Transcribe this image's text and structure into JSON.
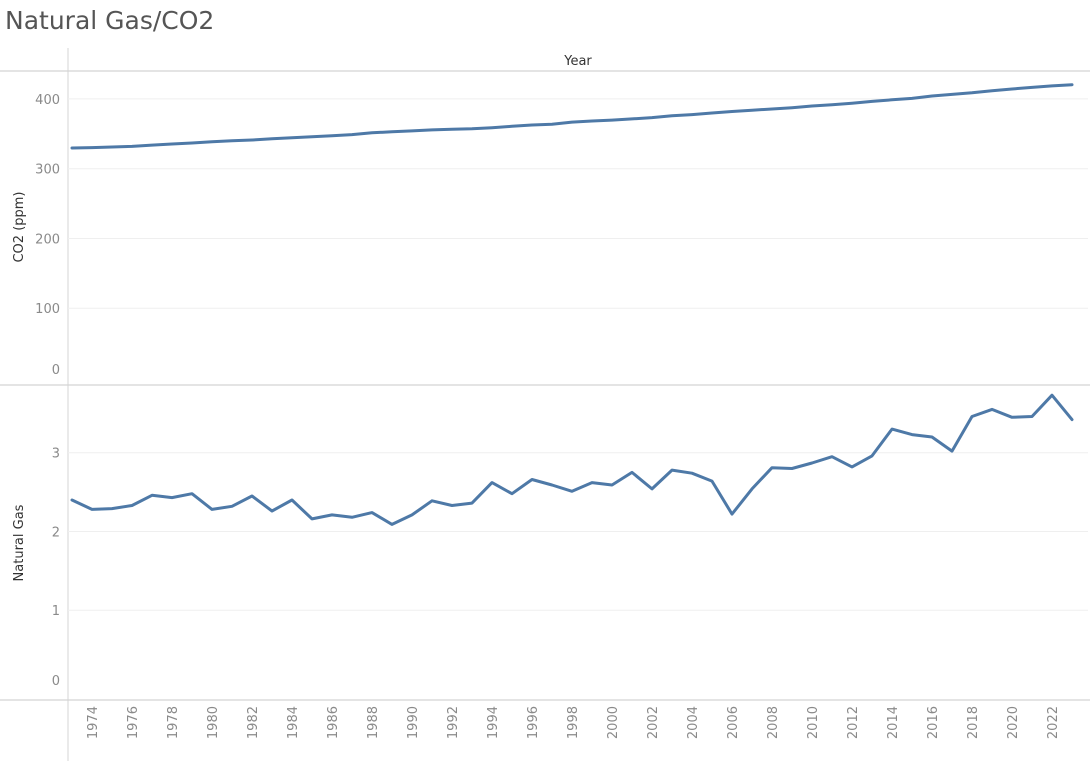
{
  "page": {
    "title": "Natural Gas/CO2"
  },
  "chart_data": {
    "type": "line",
    "xlabel": "Year",
    "xlim": [
      1972.8,
      2023.8
    ],
    "x_tick_labels": [
      "1974",
      "1976",
      "1978",
      "1980",
      "1982",
      "1984",
      "1986",
      "1988",
      "1990",
      "1992",
      "1994",
      "1996",
      "1998",
      "2000",
      "2002",
      "2004",
      "2006",
      "2008",
      "2010",
      "2012",
      "2014",
      "2016",
      "2018",
      "2020",
      "2022"
    ],
    "line_color": "#4e79a7",
    "grid": true,
    "panes": [
      {
        "ylabel": "CO2 (ppm)",
        "ylim": [
          -10,
          440
        ],
        "y_tick_labels": [
          "0",
          "100",
          "200",
          "300",
          "400"
        ],
        "x": [
          1973,
          1974,
          1975,
          1976,
          1977,
          1978,
          1979,
          1980,
          1981,
          1982,
          1983,
          1984,
          1985,
          1986,
          1987,
          1988,
          1989,
          1990,
          1991,
          1992,
          1993,
          1994,
          1995,
          1996,
          1997,
          1998,
          1999,
          2000,
          2001,
          2002,
          2003,
          2004,
          2005,
          2006,
          2007,
          2008,
          2009,
          2010,
          2011,
          2012,
          2013,
          2014,
          2015,
          2016,
          2017,
          2018,
          2019,
          2020,
          2021,
          2022,
          2023
        ],
        "values": [
          329.7,
          330.2,
          331.1,
          332.0,
          333.8,
          335.4,
          336.8,
          338.7,
          339.9,
          341.1,
          342.8,
          344.4,
          345.9,
          347.2,
          348.9,
          351.5,
          352.9,
          354.2,
          355.6,
          356.4,
          357.1,
          358.8,
          360.8,
          362.6,
          363.7,
          366.7,
          368.4,
          369.7,
          371.3,
          373.2,
          375.8,
          377.5,
          379.8,
          381.9,
          383.8,
          385.6,
          387.4,
          389.9,
          391.7,
          393.9,
          396.5,
          398.7,
          400.8,
          404.2,
          406.5,
          408.7,
          411.7,
          414.2,
          416.5,
          418.6,
          420.4
        ]
      },
      {
        "ylabel": "Natural Gas",
        "ylim": [
          -0.14,
          3.86
        ],
        "y_tick_labels": [
          "0",
          "1",
          "2",
          "3"
        ],
        "x": [
          1973,
          1974,
          1975,
          1976,
          1977,
          1978,
          1979,
          1980,
          1981,
          1982,
          1983,
          1984,
          1985,
          1986,
          1987,
          1988,
          1989,
          1990,
          1991,
          1992,
          1993,
          1994,
          1995,
          1996,
          1997,
          1998,
          1999,
          2000,
          2001,
          2002,
          2003,
          2004,
          2005,
          2006,
          2007,
          2008,
          2009,
          2010,
          2011,
          2012,
          2013,
          2014,
          2015,
          2016,
          2017,
          2018,
          2019,
          2020,
          2021,
          2022,
          2023
        ],
        "values": [
          2.4,
          2.28,
          2.29,
          2.33,
          2.46,
          2.43,
          2.48,
          2.28,
          2.32,
          2.45,
          2.26,
          2.4,
          2.16,
          2.21,
          2.18,
          2.24,
          2.09,
          2.21,
          2.39,
          2.33,
          2.36,
          2.62,
          2.48,
          2.66,
          2.59,
          2.51,
          2.62,
          2.59,
          2.75,
          2.54,
          2.78,
          2.74,
          2.64,
          2.22,
          2.54,
          2.81,
          2.8,
          2.87,
          2.95,
          2.82,
          2.96,
          3.3,
          3.23,
          3.2,
          3.02,
          3.46,
          3.55,
          3.45,
          3.46,
          3.73,
          3.42
        ]
      }
    ]
  }
}
